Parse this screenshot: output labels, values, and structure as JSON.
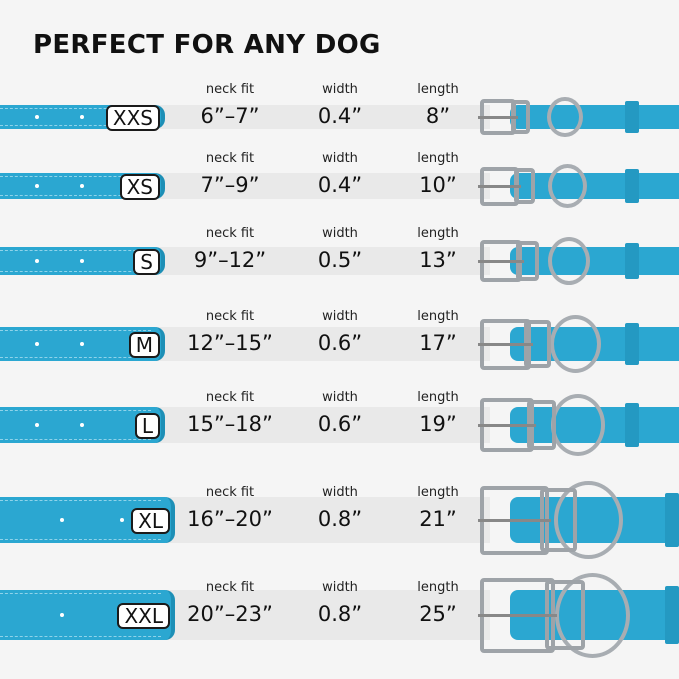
{
  "title": "PERFECT FOR ANY DOG",
  "colors": {
    "collar": "#2ba7d1",
    "band": "#e9e9e9",
    "background": "#f5f5f5"
  },
  "column_labels": {
    "neck_fit": "neck fit",
    "width": "width",
    "length": "length"
  },
  "sizes": [
    {
      "size": "XXS",
      "neck_fit": "6”–7”",
      "width": "0.4”",
      "length": "8”"
    },
    {
      "size": "XS",
      "neck_fit": "7”–9”",
      "width": "0.4”",
      "length": "10”"
    },
    {
      "size": "S",
      "neck_fit": "9”–12”",
      "width": "0.5”",
      "length": "13”"
    },
    {
      "size": "M",
      "neck_fit": "12”–15”",
      "width": "0.6”",
      "length": "17”"
    },
    {
      "size": "L",
      "neck_fit": "15”–18”",
      "width": "0.6”",
      "length": "19”"
    },
    {
      "size": "XL",
      "neck_fit": "16”–20”",
      "width": "0.8”",
      "length": "21”"
    },
    {
      "size": "XXL",
      "neck_fit": "20”–23”",
      "width": "0.8”",
      "length": "25”"
    }
  ]
}
